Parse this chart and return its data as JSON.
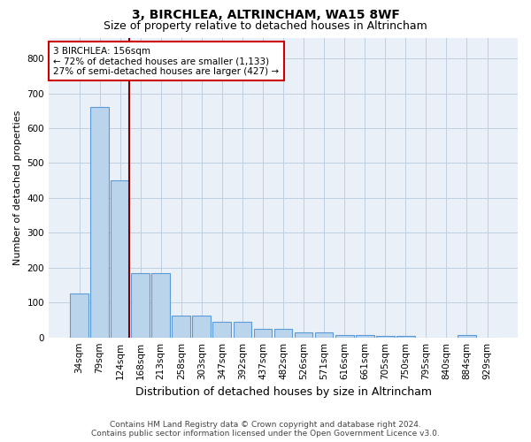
{
  "title": "3, BIRCHLEA, ALTRINCHAM, WA15 8WF",
  "subtitle": "Size of property relative to detached houses in Altrincham",
  "xlabel": "Distribution of detached houses by size in Altrincham",
  "ylabel": "Number of detached properties",
  "categories": [
    "34sqm",
    "79sqm",
    "124sqm",
    "168sqm",
    "213sqm",
    "258sqm",
    "303sqm",
    "347sqm",
    "392sqm",
    "437sqm",
    "482sqm",
    "526sqm",
    "571sqm",
    "616sqm",
    "661sqm",
    "705sqm",
    "750sqm",
    "795sqm",
    "840sqm",
    "884sqm",
    "929sqm"
  ],
  "values": [
    125,
    660,
    450,
    185,
    185,
    62,
    62,
    45,
    45,
    25,
    25,
    14,
    14,
    7,
    7,
    4,
    4,
    0,
    0,
    8,
    0
  ],
  "bar_color": "#bad4ec",
  "bar_edge_color": "#5b9bd5",
  "vline_color": "#800000",
  "vline_x_index": 2,
  "annotation_text": "3 BIRCHLEA: 156sqm\n← 72% of detached houses are smaller (1,133)\n27% of semi-detached houses are larger (427) →",
  "annotation_box_facecolor": "#ffffff",
  "annotation_box_edgecolor": "#cc0000",
  "footer_line1": "Contains HM Land Registry data © Crown copyright and database right 2024.",
  "footer_line2": "Contains public sector information licensed under the Open Government Licence v3.0.",
  "bg_color": "#ffffff",
  "plot_bg_color": "#eaf0f8",
  "grid_color": "#c0cfe0",
  "ylim_max": 860,
  "title_fontsize": 10,
  "subtitle_fontsize": 9,
  "xlabel_fontsize": 9,
  "ylabel_fontsize": 8,
  "tick_fontsize": 7.5,
  "annotation_fontsize": 7.5,
  "footer_fontsize": 6.5
}
